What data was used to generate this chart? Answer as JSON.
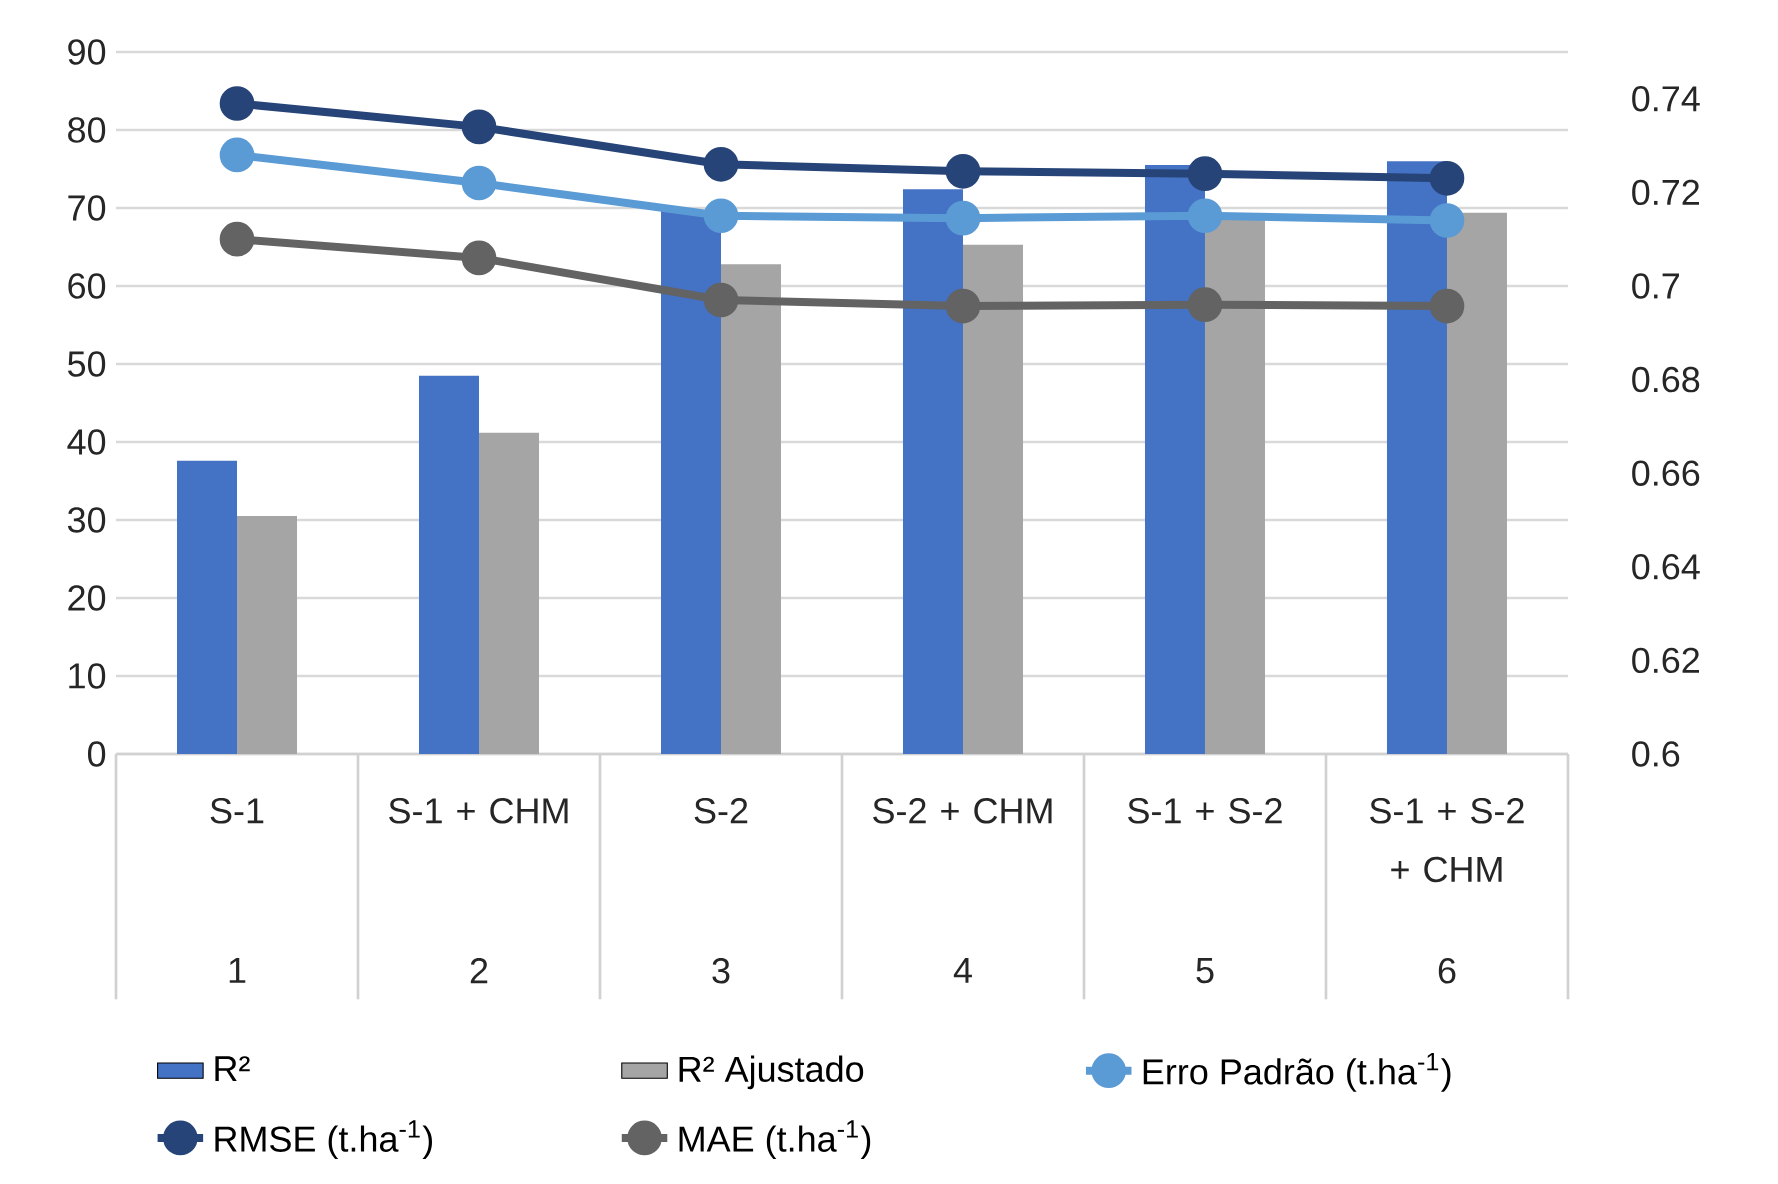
{
  "chart_data": {
    "type": "bar",
    "x": [
      1,
      2,
      3,
      4,
      5,
      6
    ],
    "xlim": [
      0.5,
      6.5
    ],
    "xticks": [
      1,
      2,
      3,
      4,
      5,
      6
    ],
    "annotations": [
      "S-1",
      "S-1 + CHM",
      "S-2",
      "S-2 + CHM",
      "S-1 + S-2",
      "S-1 + S-2 + CHM"
    ],
    "series": [
      {
        "name": "R²",
        "color": "#4472c4",
        "values": [
          37.6,
          48.5,
          69.7,
          72.4,
          75.5,
          76.0
        ]
      },
      {
        "name": "R² Ajustado",
        "color": "#a5a5a5",
        "values": [
          30.5,
          41.2,
          62.8,
          65.3,
          68.5,
          69.4
        ]
      },
      {
        "name": "Erro Padrão (t.ha$^{-1}$)",
        "type": "line",
        "axis": "y2",
        "color": "#5b9bd5",
        "values": [
          0.728,
          0.722,
          0.715,
          0.7145,
          0.715,
          0.714
        ]
      },
      {
        "name": "RMSE (t.ha$^{-1}$)",
        "type": "line",
        "axis": "y2",
        "color": "#264478",
        "values": [
          0.739,
          0.734,
          0.726,
          0.7245,
          0.724,
          0.723
        ]
      },
      {
        "name": "MAE (t.ha$^{-1}$)",
        "type": "line",
        "axis": "y2",
        "color": "#636363",
        "values": [
          0.71,
          0.706,
          0.697,
          0.6957,
          0.696,
          0.6957
        ]
      }
    ],
    "ylim": [
      0,
      90
    ],
    "yticks": [
      0,
      10,
      20,
      30,
      40,
      50,
      60,
      70,
      80,
      90
    ],
    "y2lim": [
      0.6,
      0.75
    ],
    "y2ticks": [
      0.6,
      0.62,
      0.64,
      0.66,
      0.68,
      0.7,
      0.72,
      0.74
    ],
    "grid": "y",
    "legend": "bottom",
    "marker": "circle"
  }
}
